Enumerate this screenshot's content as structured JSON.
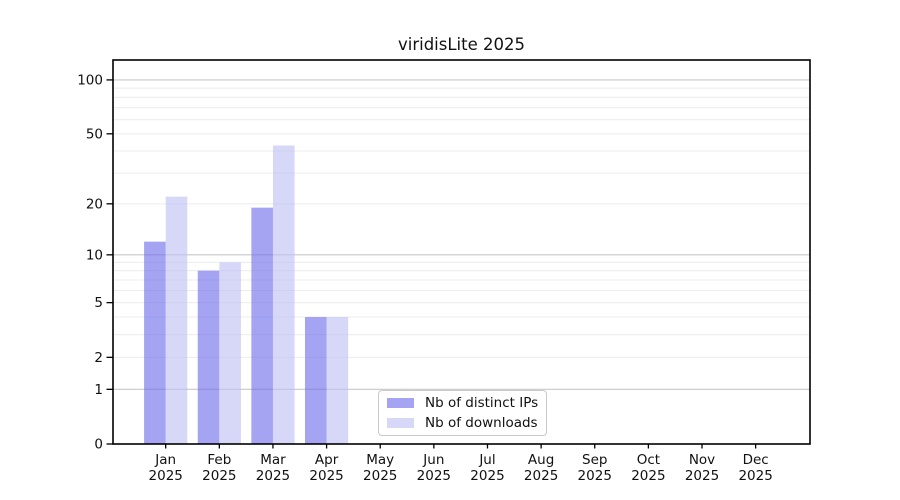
{
  "title": "viridisLite 2025",
  "chart_data": {
    "type": "bar",
    "title": "viridisLite 2025",
    "categories": [
      "Jan 2025",
      "Feb 2025",
      "Mar 2025",
      "Apr 2025",
      "May 2025",
      "Jun 2025",
      "Jul 2025",
      "Aug 2025",
      "Sep 2025",
      "Oct 2025",
      "Nov 2025",
      "Dec 2025"
    ],
    "x_tick_months": [
      "Jan",
      "Feb",
      "Mar",
      "Apr",
      "May",
      "Jun",
      "Jul",
      "Aug",
      "Sep",
      "Oct",
      "Nov",
      "Dec"
    ],
    "x_tick_year": "2025",
    "series": [
      {
        "name": "Nb of distinct IPs",
        "color": "rgba(108,108,236,0.62)",
        "values": [
          12,
          8,
          19,
          4,
          null,
          null,
          null,
          null,
          null,
          null,
          null,
          null
        ]
      },
      {
        "name": "Nb of downloads",
        "color": "rgba(190,190,242,0.62)",
        "values": [
          22,
          9,
          43,
          4,
          null,
          null,
          null,
          null,
          null,
          null,
          null,
          null
        ]
      }
    ],
    "y_ticks": [
      0,
      1,
      2,
      5,
      10,
      20,
      50,
      100
    ],
    "y_tick_labels": [
      "0",
      "1",
      "2",
      "5",
      "10",
      "20",
      "50",
      "100"
    ],
    "y_scale": "log1p",
    "ylim": [
      0,
      129
    ],
    "xlabel": "",
    "ylabel": "",
    "grid": {
      "orientation": "horizontal",
      "major_values": [
        1,
        10,
        100
      ],
      "minor_values": [
        2,
        3,
        4,
        5,
        6,
        7,
        8,
        9,
        20,
        30,
        40,
        50,
        60,
        70,
        80,
        90
      ],
      "major_color": "#c8c8c8",
      "minor_color": "#ececec"
    },
    "legend_position": "inside-bottom-center"
  },
  "colors": {
    "frame": "#000000",
    "tick": "#000000",
    "text": "#111111",
    "background": "#ffffff"
  }
}
